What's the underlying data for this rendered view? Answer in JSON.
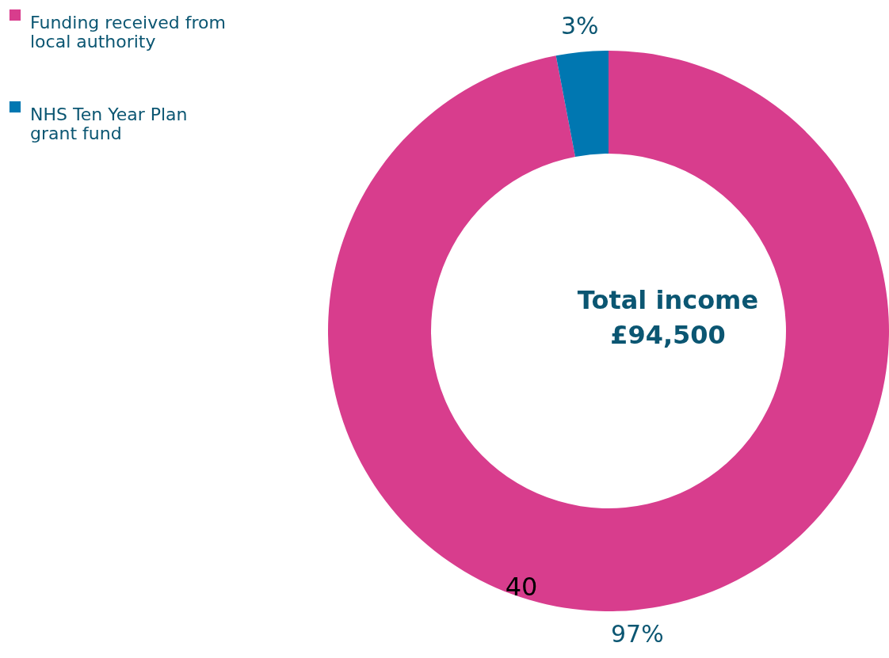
{
  "chart_data": {
    "type": "donut",
    "categories": [
      "Funding received from local authority",
      "NHS Ten Year Plan grant fund"
    ],
    "values": [
      97,
      3
    ],
    "colors": [
      "#d83d8d",
      "#0077b1"
    ],
    "value_labels": [
      "97%",
      "3%"
    ],
    "annotations": [
      "Total income",
      "£94,500",
      "40"
    ],
    "legend": "top left"
  }
}
